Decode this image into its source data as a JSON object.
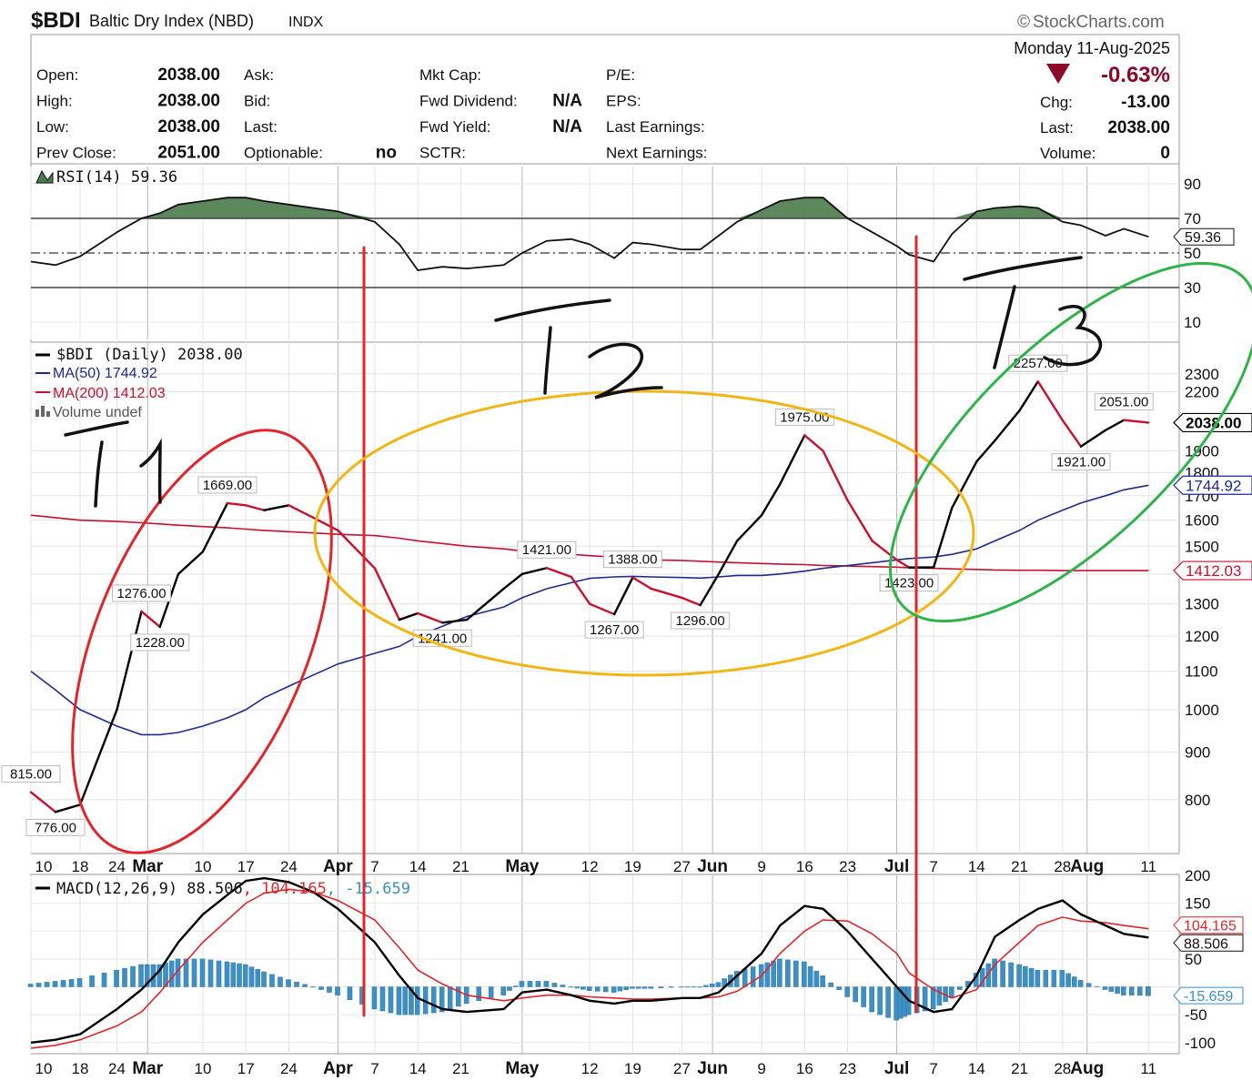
{
  "header": {
    "symbol": "$BDI",
    "name": "Baltic Dry Index (NBD)",
    "exchange": "INDX",
    "brand": "StockCharts.com",
    "date": "Monday 11-Aug-2025"
  },
  "quote": {
    "rows": [
      {
        "k1": "Open:",
        "v1": "2038.00",
        "k2": "Ask:",
        "v2": "",
        "k3": "Mkt Cap:",
        "v3": "",
        "k4": "P/E:"
      },
      {
        "k1": "High:",
        "v1": "2038.00",
        "k2": "Bid:",
        "v2": "",
        "k3": "Fwd Dividend:",
        "v3": "N/A",
        "k4": "EPS:"
      },
      {
        "k1": "Low:",
        "v1": "2038.00",
        "k2": "Last:",
        "v2": "",
        "k3": "Fwd Yield:",
        "v3": "N/A",
        "k4": "Last Earnings:"
      },
      {
        "k1": "Prev Close:",
        "v1": "2051.00",
        "k2": "Optionable:",
        "v2": "no",
        "k3": "SCTR:",
        "v3": "",
        "k4": "Next Earnings:"
      }
    ],
    "change_pct": "-0.63%",
    "chg_label": "Chg:",
    "chg": "-13.00",
    "last_label": "Last:",
    "last": "2038.00",
    "volume_label": "Volume:",
    "volume": "0",
    "down_color": "#8b0a2a"
  },
  "legend": {
    "rsi": "RSI(14) 59.36",
    "price": "$BDI (Daily) 2038.00",
    "ma50": "MA(50) 1744.92",
    "ma200": "MA(200) 1412.03",
    "volume": "Volume undef",
    "macd_name": "MACD(12,26,9) 88.506",
    "macd_signal": ", 104.165",
    "macd_hist": ", -15.659"
  },
  "annotations": {
    "t1": "T1",
    "t2": "T2",
    "t3": "T3"
  },
  "chart_data": {
    "type": "line",
    "colors": {
      "price": "#000000",
      "ma50": "#1f2a8c",
      "ma200": "#c8102e",
      "rsi_fill": "#4b7a4b",
      "macd_hist": "#3d8fc4",
      "ellipse_t1": "#e0262b",
      "ellipse_t2": "#f2b515",
      "ellipse_t3": "#2fb34a",
      "divider": "#e0262b"
    },
    "x_ticks": [
      "10",
      "18",
      "24",
      "Mar",
      "10",
      "17",
      "24",
      "Apr",
      "7",
      "14",
      "21",
      "May",
      "12",
      "19",
      "27",
      "Jun",
      "9",
      "16",
      "23",
      "Jul",
      "7",
      "14",
      "21",
      "28",
      "Aug",
      "11"
    ],
    "price": {
      "ylim": [
        700,
        2400
      ],
      "scale": "log",
      "y_ticks": [
        800,
        900,
        1000,
        1100,
        1200,
        1300,
        1400,
        1500,
        1600,
        1700,
        1800,
        1900,
        2200,
        2300
      ],
      "x": [
        "Feb 10",
        "Feb 14",
        "Feb 18",
        "Feb 24",
        "Feb 28",
        "Mar 3",
        "Mar 6",
        "Mar 10",
        "Mar 14",
        "Mar 17",
        "Mar 20",
        "Mar 24",
        "Mar 28",
        "Apr 1",
        "Apr 7",
        "Apr 11",
        "Apr 14",
        "Apr 18",
        "Apr 22",
        "Apr 28",
        "May 1",
        "May 5",
        "May 9",
        "May 12",
        "May 16",
        "May 19",
        "May 22",
        "May 27",
        "May 30",
        "Jun 2",
        "Jun 5",
        "Jun 9",
        "Jun 12",
        "Jun 16",
        "Jun 19",
        "Jun 23",
        "Jun 27",
        "Jul 1",
        "Jul 3",
        "Jul 7",
        "Jul 10",
        "Jul 14",
        "Jul 17",
        "Jul 21",
        "Jul 24",
        "Jul 28",
        "Jul 31",
        "Aug 4",
        "Aug 7",
        "Aug 11"
      ],
      "values": [
        815,
        776,
        790,
        1000,
        1276,
        1228,
        1400,
        1480,
        1669,
        1660,
        1640,
        1660,
        1610,
        1560,
        1420,
        1250,
        1270,
        1241,
        1250,
        1350,
        1400,
        1421,
        1390,
        1300,
        1267,
        1388,
        1350,
        1320,
        1296,
        1400,
        1520,
        1620,
        1750,
        1975,
        1900,
        1680,
        1520,
        1450,
        1423,
        1423,
        1650,
        1850,
        1950,
        2100,
        2257,
        2050,
        1921,
        2000,
        2051,
        2038
      ],
      "labels": [
        {
          "x": "Feb 10",
          "text": "815.00"
        },
        {
          "x": "Feb 14",
          "text": "776.00"
        },
        {
          "x": "Feb 28",
          "text": "1276.00"
        },
        {
          "x": "Mar 3",
          "text": "1228.00"
        },
        {
          "x": "Mar 14",
          "text": "1669.00"
        },
        {
          "x": "Apr 18",
          "text": "1241.00"
        },
        {
          "x": "May 5",
          "text": "1421.00"
        },
        {
          "x": "May 16",
          "text": "1267.00"
        },
        {
          "x": "May 19",
          "text": "1388.00"
        },
        {
          "x": "May 30",
          "text": "1296.00"
        },
        {
          "x": "Jun 16",
          "text": "1975.00"
        },
        {
          "x": "Jul 3",
          "text": "1423.00"
        },
        {
          "x": "Jul 24",
          "text": "2257.00"
        },
        {
          "x": "Jul 31",
          "text": "1921.00"
        },
        {
          "x": "Aug 7",
          "text": "2051.00"
        }
      ],
      "ma50": [
        1100,
        1050,
        1000,
        960,
        940,
        940,
        945,
        960,
        980,
        1000,
        1030,
        1060,
        1090,
        1120,
        1150,
        1170,
        1200,
        1230,
        1260,
        1290,
        1320,
        1350,
        1370,
        1385,
        1390,
        1392,
        1390,
        1388,
        1386,
        1390,
        1395,
        1395,
        1400,
        1410,
        1420,
        1430,
        1440,
        1450,
        1455,
        1460,
        1470,
        1490,
        1520,
        1560,
        1600,
        1640,
        1670,
        1700,
        1725,
        1744.92
      ],
      "ma200": [
        1620,
        1610,
        1600,
        1595,
        1590,
        1585,
        1580,
        1575,
        1570,
        1565,
        1560,
        1555,
        1550,
        1545,
        1540,
        1530,
        1520,
        1510,
        1500,
        1490,
        1482,
        1475,
        1470,
        1465,
        1460,
        1455,
        1450,
        1448,
        1445,
        1442,
        1440,
        1437,
        1435,
        1433,
        1430,
        1428,
        1426,
        1424,
        1422,
        1420,
        1418,
        1416,
        1414,
        1413,
        1413,
        1412,
        1412,
        1412,
        1412,
        1412.03
      ],
      "last_tags": [
        "2038.00",
        "1744.92",
        "1412.03"
      ]
    },
    "rsi": {
      "ylim": [
        0,
        100
      ],
      "y_ticks": [
        10,
        30,
        50,
        70,
        90
      ],
      "guides": [
        30,
        50,
        70
      ],
      "values": [
        45,
        43,
        48,
        62,
        70,
        73,
        78,
        80,
        82,
        82,
        80,
        78,
        76,
        74,
        68,
        55,
        40,
        42,
        41,
        43,
        50,
        57,
        58,
        55,
        47,
        56,
        55,
        52,
        52,
        60,
        68,
        75,
        80,
        82,
        82,
        70,
        62,
        54,
        49,
        45,
        61,
        74,
        76,
        77,
        76,
        68,
        66,
        60,
        64,
        59.36
      ],
      "tag": "59.36"
    },
    "macd": {
      "ylim": [
        -120,
        200
      ],
      "y_ticks": [
        -100,
        -50,
        50,
        150,
        200
      ],
      "macd": [
        -100,
        -95,
        -85,
        -40,
        -5,
        30,
        80,
        130,
        165,
        190,
        195,
        188,
        170,
        140,
        80,
        20,
        -20,
        -40,
        -45,
        -40,
        -10,
        -5,
        -15,
        -25,
        -30,
        -25,
        -25,
        -20,
        -20,
        -10,
        20,
        60,
        110,
        145,
        140,
        100,
        50,
        0,
        -25,
        -45,
        -40,
        20,
        90,
        120,
        140,
        155,
        130,
        110,
        95,
        88.506
      ],
      "signal": [
        -110,
        -105,
        -95,
        -70,
        -45,
        -10,
        30,
        80,
        120,
        150,
        168,
        175,
        170,
        155,
        120,
        70,
        30,
        5,
        -15,
        -25,
        -20,
        -15,
        -15,
        -18,
        -20,
        -22,
        -22,
        -20,
        -20,
        -18,
        -8,
        20,
        60,
        100,
        120,
        118,
        95,
        60,
        25,
        -5,
        -20,
        -5,
        40,
        80,
        110,
        125,
        118,
        115,
        110,
        104.165
      ],
      "histogram": [
        5,
        10,
        15,
        30,
        40,
        40,
        50,
        50,
        45,
        40,
        27,
        13,
        0,
        -15,
        -40,
        -50,
        -50,
        -45,
        -30,
        -15,
        10,
        10,
        0,
        -7,
        -10,
        -3,
        -3,
        0,
        0,
        8,
        28,
        40,
        50,
        45,
        20,
        -18,
        -45,
        -60,
        -50,
        -40,
        -20,
        25,
        50,
        40,
        30,
        30,
        12,
        -5,
        -15,
        -15.659
      ],
      "tags": [
        "104.165",
        "88.506",
        "-15.659"
      ]
    }
  }
}
